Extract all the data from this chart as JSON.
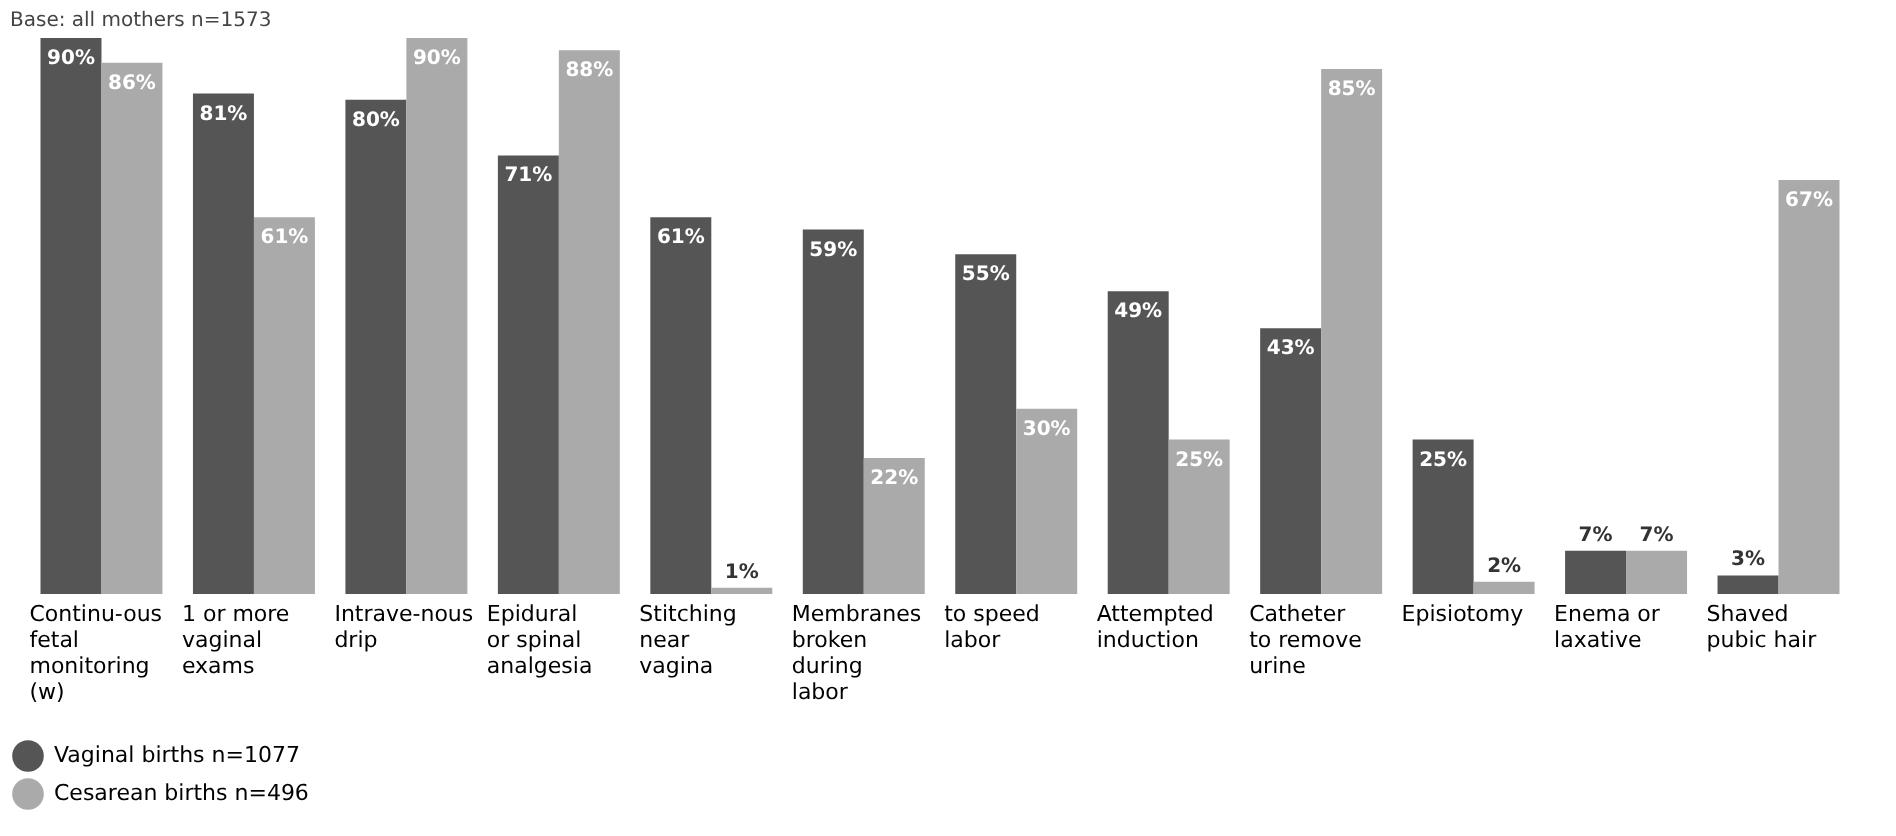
{
  "chart_data": {
    "type": "bar",
    "annotations": [
      "Base: all mothers n=1573"
    ],
    "categories": [
      "Continu-ous fetal monitoring (w)",
      "1 or more vaginal exams",
      "Intrave-nous drip",
      "Epidural or spinal analgesia",
      "Stitching near vagina",
      "Membranes broken during labor",
      "to speed labor",
      "Attempted induction",
      "Catheter to remove urine",
      "Episiotomy",
      "Enema or laxative",
      "Shaved pubic hair"
    ],
    "series": [
      {
        "name": "Vaginal births n=1077",
        "color": "#555555",
        "values": [
          90,
          81,
          80,
          71,
          61,
          59,
          55,
          49,
          43,
          25,
          7,
          3
        ],
        "value_labels": [
          "90%",
          "81%",
          "80%",
          "71%",
          "61%",
          "59%",
          "55%",
          "49%",
          "43%",
          "25%",
          "7%",
          "3%"
        ]
      },
      {
        "name": "Cesarean births n=496",
        "color": "#aaaaaa",
        "values": [
          86,
          61,
          90,
          88,
          1,
          22,
          30,
          25,
          85,
          2,
          7,
          67
        ],
        "value_labels": [
          "86%",
          "61%",
          "90%",
          "88%",
          "1%",
          "22%",
          "30%",
          "25%",
          "85%",
          "2%",
          "7%",
          "67%"
        ]
      }
    ],
    "legend": "bottom left",
    "grid": false
  }
}
